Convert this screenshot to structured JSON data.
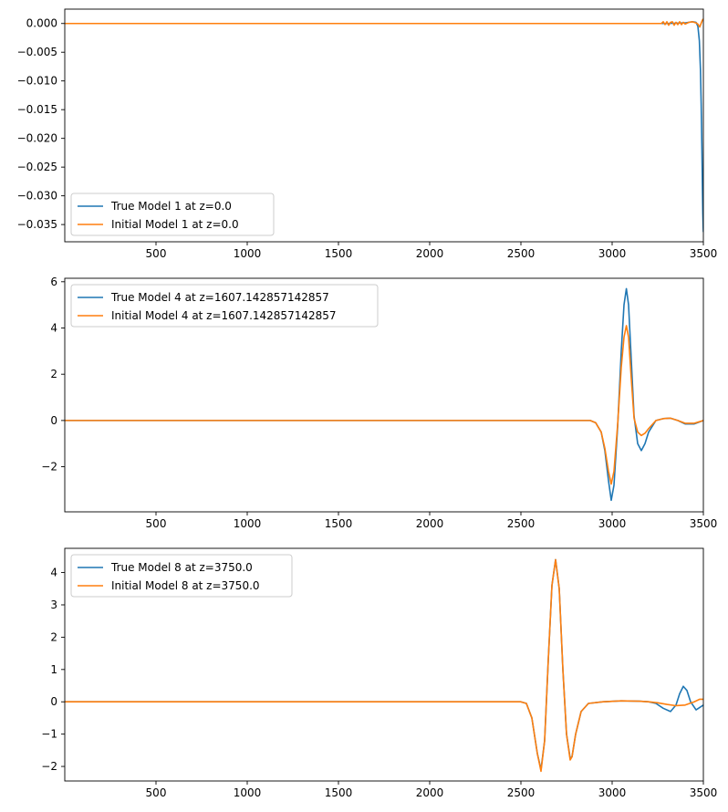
{
  "chart_data": [
    {
      "type": "line",
      "xlim": [
        0,
        3500
      ],
      "ylim": [
        -0.038,
        0.0025
      ],
      "x_ticks": [
        500,
        1000,
        1500,
        2000,
        2500,
        3000,
        3500
      ],
      "y_ticks": [
        0.0,
        -0.005,
        -0.01,
        -0.015,
        -0.02,
        -0.025,
        -0.03,
        -0.035
      ],
      "y_tick_labels": [
        "0.000",
        "−0.005",
        "−0.010",
        "−0.015",
        "−0.020",
        "−0.025",
        "−0.030",
        "−0.035"
      ],
      "legend_position": "lower-left",
      "series": [
        {
          "name": "True Model 1 at z=0.0",
          "color": "#1f77b4",
          "x": [
            0,
            3300,
            3400,
            3440,
            3460,
            3470,
            3478,
            3484,
            3488,
            3492,
            3495,
            3497,
            3499,
            3500
          ],
          "y": [
            0,
            0,
            0.0001,
            0.0003,
            0.0002,
            -0.0005,
            -0.003,
            -0.008,
            -0.014,
            -0.022,
            -0.029,
            -0.033,
            -0.0355,
            -0.0363
          ]
        },
        {
          "name": "Initial Model 1 at z=0.0",
          "color": "#ff7f0e",
          "x": [
            0,
            3270,
            3280,
            3290,
            3300,
            3310,
            3320,
            3330,
            3340,
            3350,
            3360,
            3370,
            3380,
            3390,
            3400,
            3420,
            3440,
            3460,
            3470,
            3480,
            3490,
            3495,
            3500
          ],
          "y": [
            0,
            0,
            0.0003,
            -0.0002,
            0.0003,
            -0.0003,
            0.0002,
            0.0003,
            -0.0003,
            0.0002,
            -0.0002,
            0.0003,
            -0.0002,
            0.0002,
            -0.0001,
            0.0002,
            0.0003,
            0.0001,
            -0.0001,
            -0.0006,
            0.0002,
            0.0006,
            0.0008
          ]
        }
      ]
    },
    {
      "type": "line",
      "xlim": [
        0,
        3500
      ],
      "ylim": [
        -3.95,
        6.15
      ],
      "x_ticks": [
        500,
        1000,
        1500,
        2000,
        2500,
        3000,
        3500
      ],
      "y_ticks": [
        -2,
        0,
        2,
        4,
        6
      ],
      "y_tick_labels": [
        "−2",
        "0",
        "2",
        "4",
        "6"
      ],
      "legend_position": "upper-left",
      "series": [
        {
          "name": "True Model 4 at z=1607.142857142857",
          "color": "#1f77b4",
          "x": [
            0,
            2880,
            2910,
            2940,
            2960,
            2980,
            2995,
            3010,
            3030,
            3050,
            3065,
            3078,
            3090,
            3105,
            3120,
            3140,
            3160,
            3180,
            3200,
            3240,
            3280,
            3320,
            3360,
            3400,
            3450,
            3500
          ],
          "y": [
            0,
            0,
            -0.1,
            -0.5,
            -1.3,
            -2.6,
            -3.45,
            -2.8,
            -0.3,
            3.0,
            5.0,
            5.7,
            5.0,
            2.6,
            0.2,
            -1.0,
            -1.3,
            -1.0,
            -0.5,
            0.0,
            0.08,
            0.1,
            0.0,
            -0.15,
            -0.15,
            0.0
          ]
        },
        {
          "name": "Initial Model 4 at z=1607.142857142857",
          "color": "#ff7f0e",
          "x": [
            0,
            2880,
            2910,
            2940,
            2960,
            2980,
            2995,
            3010,
            3030,
            3050,
            3065,
            3078,
            3090,
            3105,
            3120,
            3140,
            3160,
            3180,
            3200,
            3240,
            3280,
            3320,
            3360,
            3400,
            3450,
            3500
          ],
          "y": [
            0,
            0,
            -0.1,
            -0.5,
            -1.2,
            -2.2,
            -2.75,
            -2.2,
            -0.2,
            2.3,
            3.6,
            4.1,
            3.6,
            1.8,
            0.1,
            -0.5,
            -0.65,
            -0.55,
            -0.35,
            0.0,
            0.08,
            0.1,
            0.0,
            -0.12,
            -0.12,
            0.0
          ]
        }
      ]
    },
    {
      "type": "line",
      "xlim": [
        0,
        3500
      ],
      "ylim": [
        -2.45,
        4.75
      ],
      "x_ticks": [
        500,
        1000,
        1500,
        2000,
        2500,
        3000,
        3500
      ],
      "y_ticks": [
        -2,
        -1,
        0,
        1,
        2,
        3,
        4
      ],
      "y_tick_labels": [
        "−2",
        "−1",
        "0",
        "1",
        "2",
        "3",
        "4"
      ],
      "legend_position": "upper-left",
      "series": [
        {
          "name": "True Model 8 at z=3750.0",
          "color": "#1f77b4",
          "x": [
            0,
            2500,
            2530,
            2560,
            2590,
            2610,
            2630,
            2650,
            2670,
            2690,
            2710,
            2730,
            2750,
            2770,
            2780,
            2800,
            2830,
            2870,
            2950,
            3050,
            3150,
            3200,
            3240,
            3280,
            3320,
            3350,
            3370,
            3390,
            3410,
            3430,
            3460,
            3500
          ],
          "y": [
            0,
            0,
            -0.05,
            -0.5,
            -1.6,
            -2.1,
            -1.2,
            1.3,
            3.6,
            4.4,
            3.5,
            1.0,
            -1.0,
            -1.75,
            -1.7,
            -1.0,
            -0.3,
            -0.05,
            0.0,
            0.03,
            0.02,
            0.0,
            -0.05,
            -0.2,
            -0.3,
            -0.1,
            0.25,
            0.48,
            0.35,
            0.0,
            -0.25,
            -0.1
          ]
        },
        {
          "name": "Initial Model 8 at z=3750.0",
          "color": "#ff7f0e",
          "x": [
            0,
            2500,
            2530,
            2560,
            2590,
            2610,
            2630,
            2650,
            2670,
            2690,
            2710,
            2730,
            2750,
            2770,
            2780,
            2800,
            2830,
            2870,
            2950,
            3050,
            3150,
            3200,
            3250,
            3300,
            3350,
            3400,
            3450,
            3480,
            3500
          ],
          "y": [
            0,
            0,
            -0.05,
            -0.5,
            -1.6,
            -2.15,
            -1.2,
            1.3,
            3.6,
            4.4,
            3.5,
            1.0,
            -1.0,
            -1.8,
            -1.7,
            -1.0,
            -0.3,
            -0.05,
            0.0,
            0.03,
            0.02,
            0.0,
            -0.03,
            -0.08,
            -0.12,
            -0.1,
            0.0,
            0.08,
            0.08
          ]
        }
      ]
    }
  ]
}
